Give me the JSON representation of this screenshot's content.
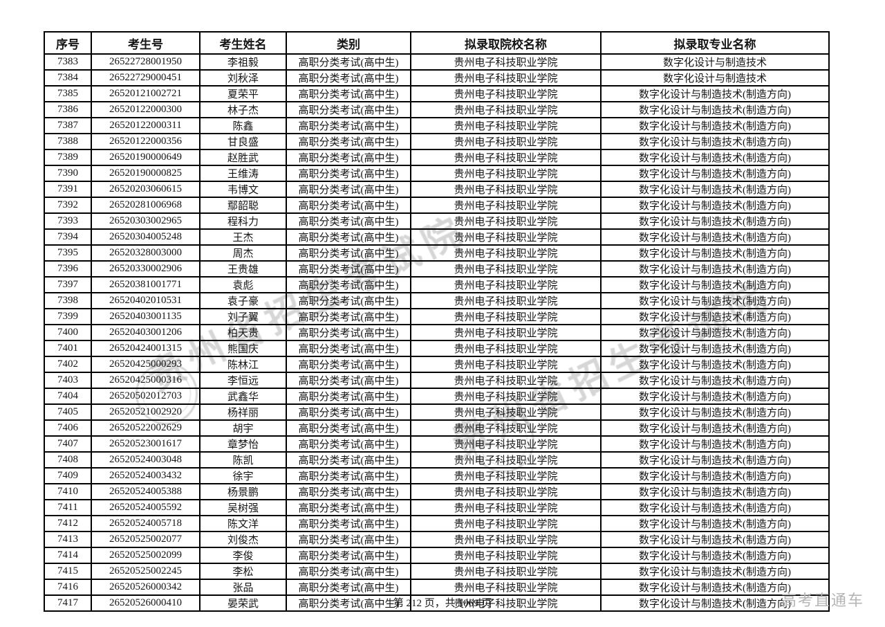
{
  "watermark": {
    "text": "贵州省招生考试院"
  },
  "footer": {
    "page_info": "第 212 页，共 1069 页",
    "brand": "高考直通车"
  },
  "colors": {
    "border": "#000000",
    "text": "#141414",
    "brand": "#b5b5b5"
  },
  "table": {
    "headers": [
      "序号",
      "考生号",
      "考生姓名",
      "类别",
      "拟录取院校名称",
      "拟录取专业名称"
    ],
    "rows": [
      [
        "7383",
        "26522728001950",
        "李祖毅",
        "高职分类考试(高中生)",
        "贵州电子科技职业学院",
        "数字化设计与制造技术"
      ],
      [
        "7384",
        "26522729000451",
        "刘秋泽",
        "高职分类考试(高中生)",
        "贵州电子科技职业学院",
        "数字化设计与制造技术"
      ],
      [
        "7385",
        "26520121002721",
        "夏荣平",
        "高职分类考试(高中生)",
        "贵州电子科技职业学院",
        "数字化设计与制造技术(制造方向)"
      ],
      [
        "7386",
        "26520122000300",
        "林子杰",
        "高职分类考试(高中生)",
        "贵州电子科技职业学院",
        "数字化设计与制造技术(制造方向)"
      ],
      [
        "7387",
        "26520122000311",
        "陈鑫",
        "高职分类考试(高中生)",
        "贵州电子科技职业学院",
        "数字化设计与制造技术(制造方向)"
      ],
      [
        "7388",
        "26520122000356",
        "甘良盛",
        "高职分类考试(高中生)",
        "贵州电子科技职业学院",
        "数字化设计与制造技术(制造方向)"
      ],
      [
        "7389",
        "26520190000649",
        "赵胜武",
        "高职分类考试(高中生)",
        "贵州电子科技职业学院",
        "数字化设计与制造技术(制造方向)"
      ],
      [
        "7390",
        "26520190000825",
        "王维涛",
        "高职分类考试(高中生)",
        "贵州电子科技职业学院",
        "数字化设计与制造技术(制造方向)"
      ],
      [
        "7391",
        "26520203060615",
        "韦博文",
        "高职分类考试(高中生)",
        "贵州电子科技职业学院",
        "数字化设计与制造技术(制造方向)"
      ],
      [
        "7392",
        "26520281006968",
        "鄢韶聪",
        "高职分类考试(高中生)",
        "贵州电子科技职业学院",
        "数字化设计与制造技术(制造方向)"
      ],
      [
        "7393",
        "26520303002965",
        "程科力",
        "高职分类考试(高中生)",
        "贵州电子科技职业学院",
        "数字化设计与制造技术(制造方向)"
      ],
      [
        "7394",
        "26520304005248",
        "王杰",
        "高职分类考试(高中生)",
        "贵州电子科技职业学院",
        "数字化设计与制造技术(制造方向)"
      ],
      [
        "7395",
        "26520328003000",
        "周杰",
        "高职分类考试(高中生)",
        "贵州电子科技职业学院",
        "数字化设计与制造技术(制造方向)"
      ],
      [
        "7396",
        "26520330002906",
        "王贵雄",
        "高职分类考试(高中生)",
        "贵州电子科技职业学院",
        "数字化设计与制造技术(制造方向)"
      ],
      [
        "7397",
        "26520381001771",
        "袁彪",
        "高职分类考试(高中生)",
        "贵州电子科技职业学院",
        "数字化设计与制造技术(制造方向)"
      ],
      [
        "7398",
        "26520402010531",
        "袁子豪",
        "高职分类考试(高中生)",
        "贵州电子科技职业学院",
        "数字化设计与制造技术(制造方向)"
      ],
      [
        "7399",
        "26520403001135",
        "刘子翼",
        "高职分类考试(高中生)",
        "贵州电子科技职业学院",
        "数字化设计与制造技术(制造方向)"
      ],
      [
        "7400",
        "26520403001206",
        "柏天贵",
        "高职分类考试(高中生)",
        "贵州电子科技职业学院",
        "数字化设计与制造技术(制造方向)"
      ],
      [
        "7401",
        "26520424001315",
        "熊国庆",
        "高职分类考试(高中生)",
        "贵州电子科技职业学院",
        "数字化设计与制造技术(制造方向)"
      ],
      [
        "7402",
        "26520425000293",
        "陈林江",
        "高职分类考试(高中生)",
        "贵州电子科技职业学院",
        "数字化设计与制造技术(制造方向)"
      ],
      [
        "7403",
        "26520425000316",
        "李恒远",
        "高职分类考试(高中生)",
        "贵州电子科技职业学院",
        "数字化设计与制造技术(制造方向)"
      ],
      [
        "7404",
        "26520502012703",
        "武鑫华",
        "高职分类考试(高中生)",
        "贵州电子科技职业学院",
        "数字化设计与制造技术(制造方向)"
      ],
      [
        "7405",
        "26520521002920",
        "杨祥丽",
        "高职分类考试(高中生)",
        "贵州电子科技职业学院",
        "数字化设计与制造技术(制造方向)"
      ],
      [
        "7406",
        "26520522002629",
        "胡宇",
        "高职分类考试(高中生)",
        "贵州电子科技职业学院",
        "数字化设计与制造技术(制造方向)"
      ],
      [
        "7407",
        "26520523001617",
        "章梦怡",
        "高职分类考试(高中生)",
        "贵州电子科技职业学院",
        "数字化设计与制造技术(制造方向)"
      ],
      [
        "7408",
        "26520524003048",
        "陈凯",
        "高职分类考试(高中生)",
        "贵州电子科技职业学院",
        "数字化设计与制造技术(制造方向)"
      ],
      [
        "7409",
        "26520524003432",
        "徐宇",
        "高职分类考试(高中生)",
        "贵州电子科技职业学院",
        "数字化设计与制造技术(制造方向)"
      ],
      [
        "7410",
        "26520524005388",
        "杨景鹏",
        "高职分类考试(高中生)",
        "贵州电子科技职业学院",
        "数字化设计与制造技术(制造方向)"
      ],
      [
        "7411",
        "26520524005592",
        "吴树强",
        "高职分类考试(高中生)",
        "贵州电子科技职业学院",
        "数字化设计与制造技术(制造方向)"
      ],
      [
        "7412",
        "26520524005718",
        "陈文洋",
        "高职分类考试(高中生)",
        "贵州电子科技职业学院",
        "数字化设计与制造技术(制造方向)"
      ],
      [
        "7413",
        "26520525002077",
        "刘俊杰",
        "高职分类考试(高中生)",
        "贵州电子科技职业学院",
        "数字化设计与制造技术(制造方向)"
      ],
      [
        "7414",
        "26520525002099",
        "李俊",
        "高职分类考试(高中生)",
        "贵州电子科技职业学院",
        "数字化设计与制造技术(制造方向)"
      ],
      [
        "7415",
        "26520525002245",
        "李松",
        "高职分类考试(高中生)",
        "贵州电子科技职业学院",
        "数字化设计与制造技术(制造方向)"
      ],
      [
        "7416",
        "26520526000342",
        "张品",
        "高职分类考试(高中生)",
        "贵州电子科技职业学院",
        "数字化设计与制造技术(制造方向)"
      ],
      [
        "7417",
        "26520526000410",
        "晏荣武",
        "高职分类考试(高中生)",
        "贵州电子科技职业学院",
        "数字化设计与制造技术(制造方向)"
      ]
    ]
  }
}
